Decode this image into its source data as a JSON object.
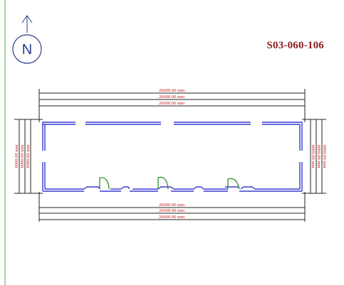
{
  "drawing": {
    "code": "S03-060-106",
    "north_letter": "N",
    "dimensions": {
      "top_1": "26600.00 mm",
      "top_2": "26600.00 mm",
      "top_3": "26600.00 mm",
      "bottom_1": "26600.00 mm",
      "bottom_2": "26600.00 mm",
      "bottom_3": "26600.00 mm",
      "left_1": "6000.00 mm",
      "left_2": "6000.00 mm",
      "left_3": "6000.00 mm",
      "right_1": "6000.00 mm",
      "right_2": "6000.00 mm",
      "right_3": "6000.00 mm"
    },
    "colors": {
      "wall": "#3a3ad0",
      "door": "#1a8a1a",
      "dimension_line": "#222222",
      "dimension_text": "#c01818",
      "code_text": "#8b1a1a",
      "north_symbol": "#2d3b8c",
      "margin_line": "#4caf50"
    },
    "icons": [
      "north-arrow-icon",
      "door-swing-icon"
    ]
  }
}
